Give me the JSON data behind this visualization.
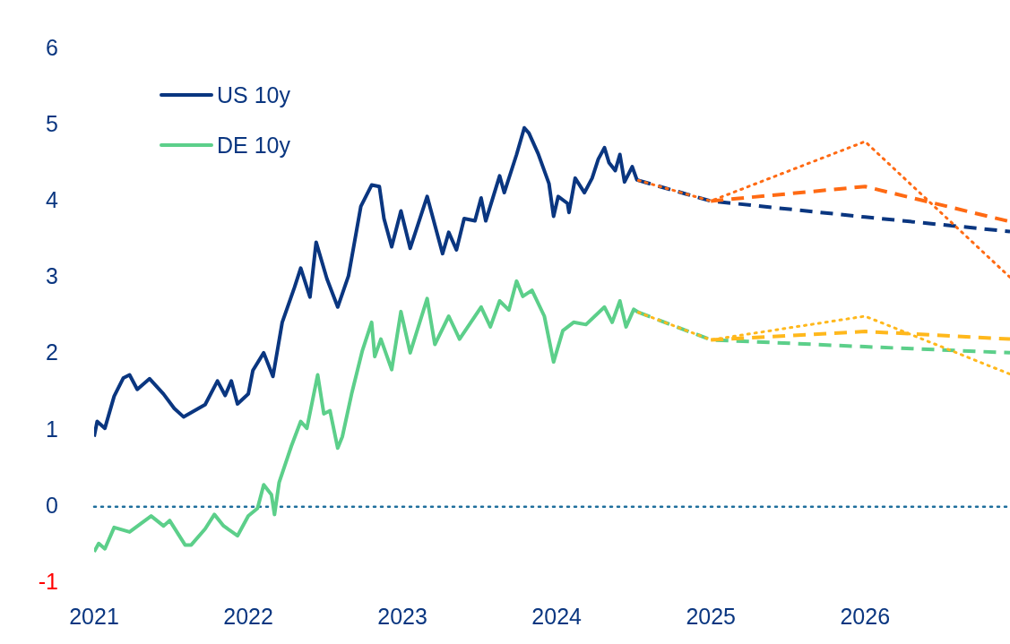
{
  "chart_data": {
    "type": "line",
    "legend": "top left",
    "xlim": [
      2021,
      2026.94
    ],
    "xticks": [
      2021,
      2022,
      2023,
      2024,
      2025,
      2026
    ],
    "ylim": [
      -1,
      6
    ],
    "yticks": [
      -1,
      0,
      1,
      2,
      3,
      4,
      5,
      6
    ],
    "ref_lines": [
      {
        "axis": "y",
        "value": 0,
        "color": "#1f6e9c",
        "line_style": "dotted"
      }
    ],
    "series": [
      {
        "name": "US 10y",
        "color": "#0a3680",
        "line_style": "solid",
        "x": [
          2021.0,
          2021.02,
          2021.07,
          2021.13,
          2021.19,
          2021.23,
          2021.28,
          2021.36,
          2021.45,
          2021.52,
          2021.58,
          2021.72,
          2021.8,
          2021.85,
          2021.89,
          2021.93,
          2022.0,
          2022.03,
          2022.1,
          2022.16,
          2022.22,
          2022.3,
          2022.34,
          2022.4,
          2022.44,
          2022.51,
          2022.58,
          2022.65,
          2022.73,
          2022.8,
          2022.85,
          2022.88,
          2022.93,
          2022.99,
          2023.05,
          2023.16,
          2023.26,
          2023.3,
          2023.35,
          2023.4,
          2023.47,
          2023.51,
          2023.54,
          2023.63,
          2023.66,
          2023.74,
          2023.79,
          2023.82,
          2023.88,
          2023.95,
          2023.98,
          2024.01,
          2024.07,
          2024.08,
          2024.12,
          2024.18,
          2024.23,
          2024.27,
          2024.31,
          2024.34,
          2024.38,
          2024.41,
          2024.44,
          2024.49,
          2024.52,
          2024.53
        ],
        "values": [
          0.92,
          1.12,
          1.03,
          1.45,
          1.69,
          1.73,
          1.54,
          1.68,
          1.48,
          1.29,
          1.18,
          1.34,
          1.65,
          1.46,
          1.65,
          1.35,
          1.48,
          1.79,
          2.02,
          1.71,
          2.42,
          2.88,
          3.13,
          2.75,
          3.47,
          2.99,
          2.62,
          3.03,
          3.94,
          4.22,
          4.2,
          3.78,
          3.41,
          3.88,
          3.39,
          4.07,
          3.32,
          3.6,
          3.37,
          3.78,
          3.75,
          4.05,
          3.75,
          4.34,
          4.12,
          4.62,
          4.97,
          4.9,
          4.63,
          4.24,
          3.81,
          4.07,
          3.98,
          3.86,
          4.31,
          4.12,
          4.31,
          4.56,
          4.71,
          4.51,
          4.41,
          4.62,
          4.26,
          4.46,
          4.29,
          4.28
        ]
      },
      {
        "name": "DE 10y",
        "color": "#5ccf8a",
        "line_style": "solid",
        "x": [
          2021.0,
          2021.03,
          2021.07,
          2021.13,
          2021.23,
          2021.37,
          2021.45,
          2021.49,
          2021.59,
          2021.63,
          2021.72,
          2021.78,
          2021.84,
          2021.93,
          2022.0,
          2022.06,
          2022.1,
          2022.15,
          2022.17,
          2022.2,
          2022.28,
          2022.34,
          2022.38,
          2022.45,
          2022.49,
          2022.53,
          2022.58,
          2022.61,
          2022.67,
          2022.74,
          2022.8,
          2022.82,
          2022.86,
          2022.93,
          2022.99,
          2023.05,
          2023.16,
          2023.21,
          2023.3,
          2023.37,
          2023.51,
          2023.57,
          2023.63,
          2023.69,
          2023.74,
          2023.78,
          2023.84,
          2023.92,
          2023.98,
          2024.04,
          2024.11,
          2024.19,
          2024.31,
          2024.36,
          2024.41,
          2024.45,
          2024.5,
          2024.53
        ],
        "values": [
          -0.59,
          -0.48,
          -0.55,
          -0.27,
          -0.33,
          -0.12,
          -0.25,
          -0.18,
          -0.5,
          -0.5,
          -0.29,
          -0.1,
          -0.25,
          -0.38,
          -0.12,
          -0.02,
          0.29,
          0.16,
          -0.1,
          0.32,
          0.8,
          1.12,
          1.03,
          1.73,
          1.22,
          1.26,
          0.77,
          0.92,
          1.48,
          2.05,
          2.42,
          1.97,
          2.2,
          1.8,
          2.56,
          2.02,
          2.73,
          2.13,
          2.5,
          2.2,
          2.62,
          2.36,
          2.7,
          2.58,
          2.96,
          2.76,
          2.84,
          2.5,
          1.9,
          2.31,
          2.42,
          2.39,
          2.62,
          2.42,
          2.7,
          2.36,
          2.59,
          2.55
        ]
      },
      {
        "color": "#0a3680",
        "line_style": "dashed",
        "x": [
          2024.53,
          2025,
          2026,
          2026.94
        ],
        "values": [
          4.28,
          4.01,
          3.8,
          3.61
        ]
      },
      {
        "color": "#ff6a13",
        "line_style": "dashed",
        "x": [
          2025,
          2026,
          2026.94
        ],
        "values": [
          4.01,
          4.2,
          3.74
        ]
      },
      {
        "color": "#ff6a13",
        "line_style": "dotted",
        "x": [
          2024.53,
          2025,
          2026,
          2026.94
        ],
        "values": [
          4.28,
          4.01,
          4.79,
          3.01
        ]
      },
      {
        "color": "#5ccf8a",
        "line_style": "dashed",
        "x": [
          2024.53,
          2025,
          2026,
          2026.94
        ],
        "values": [
          2.55,
          2.19,
          2.1,
          2.02
        ]
      },
      {
        "color": "#ffb81c",
        "line_style": "dashed",
        "x": [
          2025,
          2026,
          2026.94
        ],
        "values": [
          2.19,
          2.3,
          2.2
        ]
      },
      {
        "color": "#ffb81c",
        "line_style": "dotted",
        "x": [
          2024.53,
          2025,
          2026,
          2026.94
        ],
        "values": [
          2.55,
          2.19,
          2.5,
          1.74
        ]
      }
    ]
  }
}
